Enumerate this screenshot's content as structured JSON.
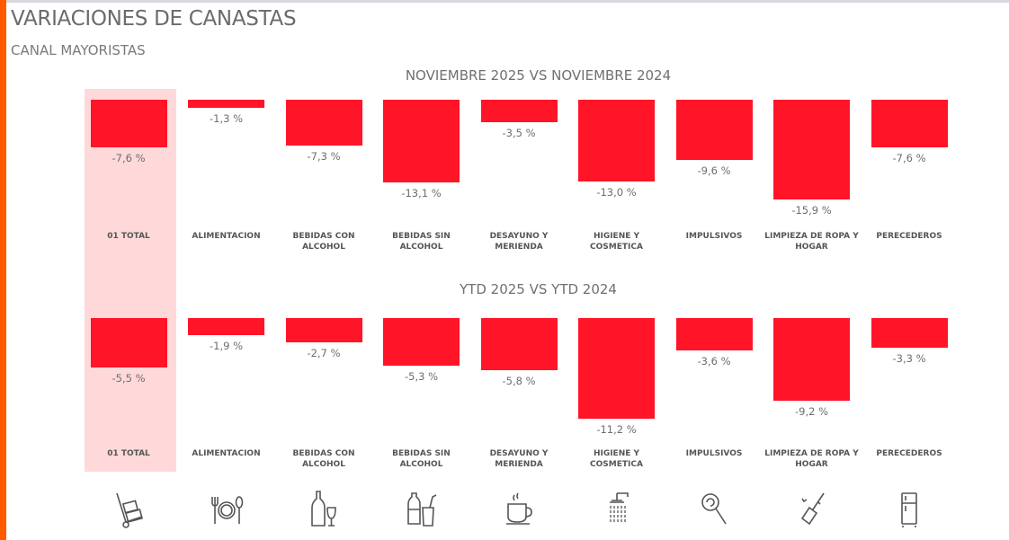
{
  "header": {
    "title": "VARIACIONES DE CANASTAS",
    "subtitle": "CANAL MAYORISTAS"
  },
  "colors": {
    "bar": "#ff1428",
    "highlight": "#ffd9d9",
    "accent": "#ff5a00"
  },
  "chart_data": [
    {
      "type": "bar",
      "title": "NOVIEMBRE 2025 VS NOVIEMBRE 2024",
      "categories": [
        "01 TOTAL",
        "ALIMENTACION",
        "BEBIDAS CON ALCOHOL",
        "BEBIDAS SIN ALCOHOL",
        "DESAYUNO Y MERIENDA",
        "HIGIENE Y COSMETICA",
        "IMPULSIVOS",
        "LIMPIEZA DE ROPA Y HOGAR",
        "PERECEDEROS"
      ],
      "values": [
        -7.6,
        -1.3,
        -7.3,
        -13.1,
        -3.5,
        -13.0,
        -9.6,
        -15.9,
        -7.6
      ],
      "labels": [
        "-7,6 %",
        "-1,3 %",
        "-7,3 %",
        "-13,1 %",
        "-3,5 %",
        "-13,0 %",
        "-9,6 %",
        "-15,9 %",
        "-7,6 %"
      ],
      "highlighted": "01 TOTAL"
    },
    {
      "type": "bar",
      "title": "YTD 2025 VS YTD 2024",
      "categories": [
        "01 TOTAL",
        "ALIMENTACION",
        "BEBIDAS CON ALCOHOL",
        "BEBIDAS SIN ALCOHOL",
        "DESAYUNO Y MERIENDA",
        "HIGIENE Y COSMETICA",
        "IMPULSIVOS",
        "LIMPIEZA DE ROPA Y HOGAR",
        "PERECEDEROS"
      ],
      "values": [
        -5.5,
        -1.9,
        -2.7,
        -5.3,
        -5.8,
        -11.2,
        -3.6,
        -9.2,
        -3.3
      ],
      "labels": [
        "-5,5 %",
        "-1,9 %",
        "-2,7 %",
        "-5,3 %",
        "-5,8 %",
        "-11,2 %",
        "-3,6 %",
        "-9,2 %",
        "-3,3 %"
      ],
      "highlighted": "01 TOTAL"
    }
  ],
  "icons": [
    "hand-truck-icon",
    "fork-plate-spoon-icon",
    "wine-bottle-glass-icon",
    "soda-bottle-cup-icon",
    "coffee-cup-icon",
    "shower-icon",
    "lollipop-icon",
    "broom-sparkle-icon",
    "refrigerator-icon"
  ]
}
